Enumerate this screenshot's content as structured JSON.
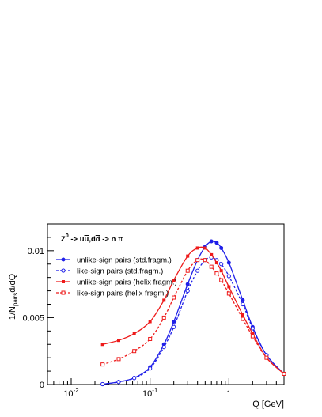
{
  "chart_data": {
    "type": "line",
    "process_label": {
      "prefix": "Z",
      "superscript": "0",
      "middle": " -> u",
      "ubar": "u",
      "comma": ",d",
      "dbar": "d",
      "suffix": " -> n ",
      "pi": "π"
    },
    "xlabel": "Q [GeV]",
    "ylabel": {
      "prefix": "1/N",
      "sub": "pairs",
      "suffix": "d/dQ"
    },
    "xscale": "log",
    "xlim": [
      0.005,
      5
    ],
    "ylim": [
      0,
      0.012
    ],
    "x_ticks": [
      {
        "value": 0.01,
        "base": "10",
        "exp": "-2"
      },
      {
        "value": 0.1,
        "base": "10",
        "exp": "-1"
      },
      {
        "value": 1,
        "base": "1",
        "exp": ""
      }
    ],
    "y_ticks": [
      {
        "value": 0,
        "label": "0"
      },
      {
        "value": 0.005,
        "label": "0.005"
      },
      {
        "value": 0.01,
        "label": "0.01"
      }
    ],
    "legend_position": "top-left",
    "series": [
      {
        "name": "unlike-sign pairs (std.fragm.)",
        "color": "#1f1fe8",
        "line": "solid",
        "marker": "filled-circle",
        "x": [
          0.025,
          0.04,
          0.063,
          0.1,
          0.15,
          0.2,
          0.3,
          0.4,
          0.5,
          0.6,
          0.7,
          0.8,
          1.0,
          1.5,
          2.0,
          3.0,
          5.0
        ],
        "y": [
          3e-05,
          0.0002,
          0.0005,
          0.0013,
          0.003,
          0.0047,
          0.0075,
          0.0093,
          0.0103,
          0.0107,
          0.0106,
          0.0102,
          0.0091,
          0.0063,
          0.0043,
          0.0022,
          0.0008
        ]
      },
      {
        "name": "like-sign pairs (std.fragm.)",
        "color": "#1f1fe8",
        "line": "dashed",
        "marker": "open-circle",
        "x": [
          0.025,
          0.04,
          0.063,
          0.1,
          0.15,
          0.2,
          0.3,
          0.4,
          0.5,
          0.6,
          0.7,
          0.8,
          1.0,
          1.5,
          2.0,
          3.0,
          5.0
        ],
        "y": [
          3e-05,
          0.00019,
          0.00048,
          0.0012,
          0.0028,
          0.0043,
          0.007,
          0.0085,
          0.0093,
          0.0095,
          0.0093,
          0.009,
          0.0081,
          0.006,
          0.0042,
          0.0022,
          0.0008
        ]
      },
      {
        "name": "unlike-sign pairs (helix fragm.)",
        "color": "#ee1a1a",
        "line": "solid",
        "marker": "filled-square",
        "x": [
          0.025,
          0.04,
          0.063,
          0.1,
          0.15,
          0.2,
          0.3,
          0.4,
          0.5,
          0.6,
          0.7,
          0.8,
          1.0,
          1.5,
          2.0,
          3.0,
          5.0
        ],
        "y": [
          0.003,
          0.0033,
          0.0038,
          0.0047,
          0.0063,
          0.0078,
          0.0096,
          0.0102,
          0.0102,
          0.0097,
          0.0091,
          0.0085,
          0.0073,
          0.0052,
          0.0038,
          0.002,
          0.0008
        ]
      },
      {
        "name": "like-sign pairs (helix fragm.)",
        "color": "#ee1a1a",
        "line": "dashed",
        "marker": "open-square",
        "x": [
          0.025,
          0.04,
          0.063,
          0.1,
          0.15,
          0.2,
          0.3,
          0.4,
          0.5,
          0.6,
          0.7,
          0.8,
          1.0,
          1.5,
          2.0,
          3.0,
          5.0
        ],
        "y": [
          0.0015,
          0.0019,
          0.0025,
          0.0034,
          0.005,
          0.0065,
          0.0085,
          0.0093,
          0.0093,
          0.0088,
          0.0083,
          0.0078,
          0.0068,
          0.0049,
          0.0036,
          0.002,
          0.0008
        ]
      }
    ]
  }
}
